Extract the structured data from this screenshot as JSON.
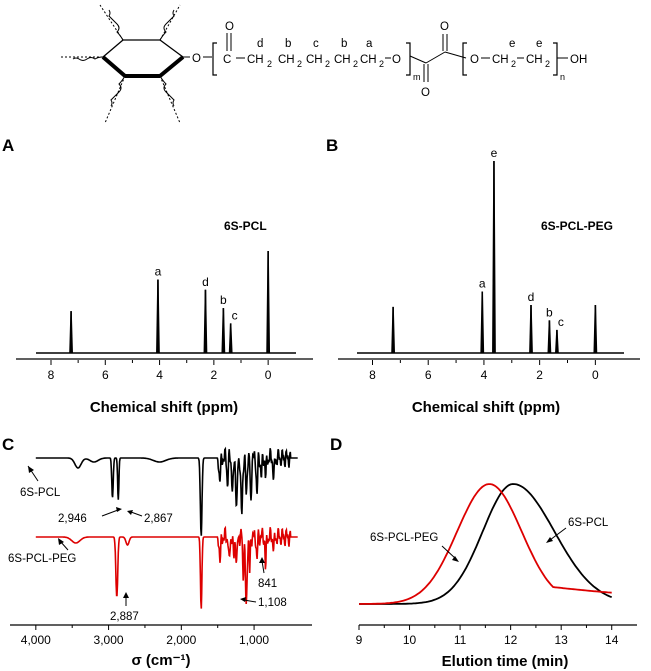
{
  "structure": {
    "ring_o": "O",
    "carbonyl_o": "O",
    "c_atom": "C",
    "label_d": "d",
    "label_b1": "b",
    "label_c": "c",
    "label_b2": "b",
    "label_a": "a",
    "ch2": "CH",
    "sub2": "2",
    "ester_o": "O",
    "sub_m": "m",
    "oxalyl_o1": "O",
    "oxalyl_o2": "O",
    "peg_o": "O",
    "label_e1": "e",
    "label_e2": "e",
    "sub_n": "n",
    "oh": "OH"
  },
  "panels": {
    "A": {
      "letter": "A",
      "sample": "6S-PCL"
    },
    "B": {
      "letter": "B",
      "sample": "6S-PCL-PEG"
    },
    "C": {
      "letter": "C"
    },
    "D": {
      "letter": "D"
    }
  },
  "chart_data": [
    {
      "id": "A",
      "type": "line",
      "title": "6S-PCL",
      "xlabel": "Chemical shift (ppm)",
      "ylabel": "",
      "xlim": [
        8.7,
        -1.1
      ],
      "xticks": [
        8,
        6,
        4,
        2,
        0
      ],
      "reversed_x": true,
      "peaks": [
        {
          "x": 7.26,
          "h": 0.41,
          "label": ""
        },
        {
          "x": 4.06,
          "h": 0.72,
          "label": "a"
        },
        {
          "x": 2.31,
          "h": 0.62,
          "label": "d"
        },
        {
          "x": 1.65,
          "h": 0.44,
          "label": "b"
        },
        {
          "x": 1.38,
          "h": 0.29,
          "label": "c"
        },
        {
          "x": 0.0,
          "h": 1.0,
          "label": ""
        }
      ]
    },
    {
      "id": "B",
      "type": "line",
      "title": "6S-PCL-PEG",
      "xlabel": "Chemical shift (ppm)",
      "ylabel": "",
      "xlim": [
        8.7,
        -1.1
      ],
      "xticks": [
        8,
        6,
        4,
        2,
        0
      ],
      "reversed_x": true,
      "peaks": [
        {
          "x": 7.26,
          "h": 0.24,
          "label": ""
        },
        {
          "x": 4.06,
          "h": 0.32,
          "label": "a"
        },
        {
          "x": 3.64,
          "h": 1.0,
          "label": "e"
        },
        {
          "x": 2.31,
          "h": 0.25,
          "label": "d"
        },
        {
          "x": 1.65,
          "h": 0.17,
          "label": "b"
        },
        {
          "x": 1.38,
          "h": 0.12,
          "label": "c"
        },
        {
          "x": 0.0,
          "h": 0.25,
          "label": ""
        }
      ]
    },
    {
      "id": "C",
      "type": "line",
      "xlabel": "σ (cm⁻¹)",
      "ylabel": "",
      "xlim": [
        4300,
        300
      ],
      "xticks": [
        4000,
        3000,
        2000,
        1000
      ],
      "xtick_labels": [
        "4,000",
        "3,000",
        "2,000",
        "1,000"
      ],
      "reversed_x": true,
      "series": [
        {
          "name": "6S-PCL",
          "color": "#000000",
          "annotations": [
            {
              "x": 2946,
              "label": "2,946"
            },
            {
              "x": 2867,
              "label": "2,867"
            }
          ]
        },
        {
          "name": "6S-PCL-PEG",
          "color": "#dd0000",
          "annotations": [
            {
              "x": 2887,
              "label": "2,887"
            },
            {
              "x": 1108,
              "label": "1,108"
            },
            {
              "x": 841,
              "label": "841"
            }
          ]
        }
      ]
    },
    {
      "id": "D",
      "type": "line",
      "xlabel": "Elution time (min)",
      "ylabel": "",
      "xlim": [
        9,
        14.5
      ],
      "xticks": [
        9,
        10,
        11,
        12,
        13,
        14
      ],
      "xtick_labels": [
        "9",
        "10",
        "11",
        "12",
        "13",
        "14"
      ],
      "series": [
        {
          "name": "6S-PCL",
          "color": "#000000",
          "peak_x": 12.05
        },
        {
          "name": "6S-PCL-PEG",
          "color": "#dd0000",
          "peak_x": 11.58
        }
      ]
    }
  ]
}
